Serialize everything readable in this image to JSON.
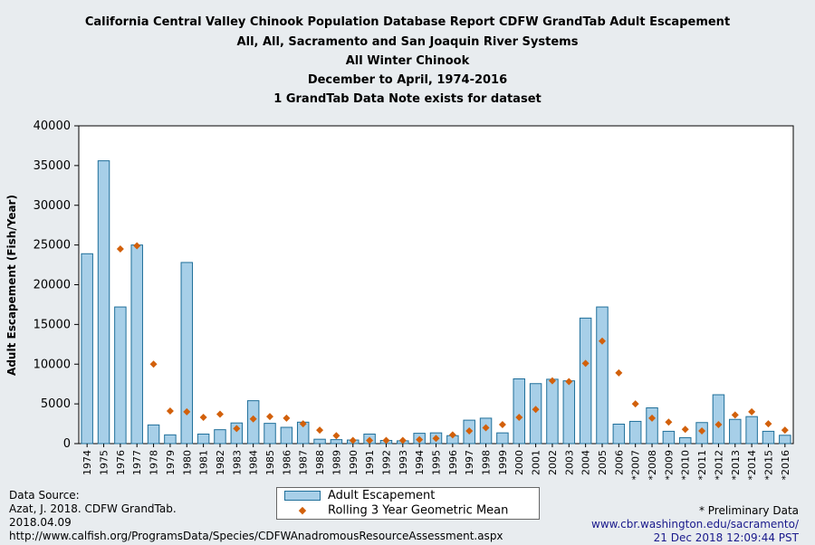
{
  "titles": [
    "California Central Valley Chinook Population Database Report CDFW GrandTab Adult Escapement",
    "All, All, Sacramento and San Joaquin River Systems",
    "All Winter Chinook",
    "December to April, 1974-2016",
    "1 GrandTab Data Note exists for dataset"
  ],
  "colors": {
    "bar_fill": "#a7cfe8",
    "bar_stroke": "#1f6f9a",
    "marker": "#d2600b",
    "background": "#e8ecef"
  },
  "chart_data": {
    "type": "bar",
    "ylabel": "Adult Escapement (Fish/Year)",
    "ylim": [
      0,
      40000
    ],
    "yticks": [
      0,
      5000,
      10000,
      15000,
      20000,
      25000,
      30000,
      35000,
      40000
    ],
    "grid": false,
    "legend_position": "bottom-center",
    "categories": [
      "1974",
      "1975",
      "1976",
      "1977",
      "1978",
      "1979",
      "1980",
      "1981",
      "1982",
      "1983",
      "1984",
      "1985",
      "1986",
      "1987",
      "1988",
      "1989",
      "1990",
      "1991",
      "1992",
      "1993",
      "1994",
      "1995",
      "1996",
      "1997",
      "1998",
      "1999",
      "2000",
      "2001",
      "2002",
      "2003",
      "2004",
      "2005",
      "2006",
      "*2007",
      "*2008",
      "*2009",
      "*2010",
      "*2011",
      "*2012",
      "*2013",
      "*2014",
      "*2015",
      "*2016"
    ],
    "series": [
      {
        "name": "Adult Escapement",
        "kind": "bar",
        "values": [
          23900,
          35600,
          17200,
          25000,
          2350,
          1100,
          22800,
          1200,
          1750,
          2600,
          5400,
          2550,
          2050,
          2700,
          550,
          500,
          450,
          1200,
          400,
          350,
          1300,
          1350,
          1000,
          2950,
          3200,
          1350,
          8150,
          7550,
          8100,
          7900,
          15800,
          17200,
          2450,
          2800,
          4500,
          1550,
          750,
          2650,
          6150,
          3050,
          3400,
          1550,
          1050
        ]
      },
      {
        "name": "Rolling 3 Year Geometric Mean",
        "kind": "marker",
        "values": [
          null,
          null,
          24500,
          24900,
          10000,
          4100,
          4000,
          3300,
          3700,
          1900,
          3100,
          3400,
          3200,
          2500,
          1700,
          1000,
          400,
          400,
          400,
          400,
          500,
          650,
          1100,
          1600,
          2000,
          2400,
          3300,
          4300,
          7900,
          7800,
          10100,
          12900,
          8900,
          5000,
          3200,
          2700,
          1800,
          1600,
          2400,
          3600,
          4000,
          2500,
          1700
        ]
      }
    ]
  },
  "footer": {
    "source_lines": [
      "Data Source:",
      "Azat, J. 2018. CDFW GrandTab.",
      "2018.04.09",
      "http://www.calfish.org/ProgramsData/Species/CDFWAnadromousResourceAssessment.aspx"
    ],
    "preliminary_note": "* Preliminary Data",
    "site_url": "www.cbr.washington.edu/sacramento/",
    "timestamp": "21 Dec 2018 12:09:44 PST"
  }
}
